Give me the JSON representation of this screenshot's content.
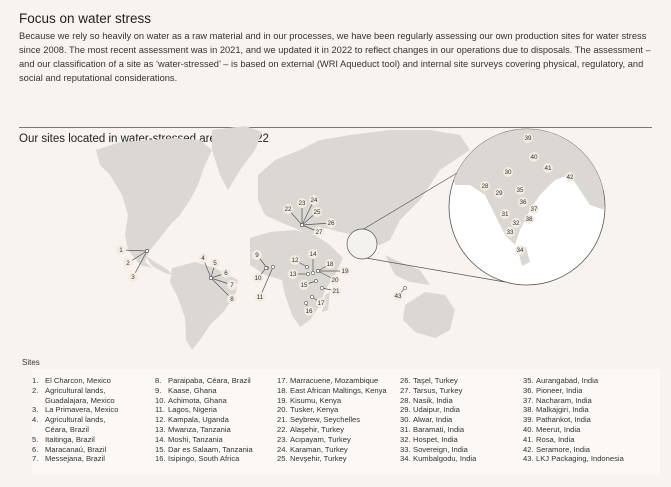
{
  "header": {
    "title": "Focus on water stress",
    "intro": "Because we rely so heavily on water as a raw material and in our processes, we have been regularly assessing our own production sites for water stress since 2008. The most recent assessment was in 2021, and we updated it in 2022 to reflect changes in our operations due to disposals. The assessment – and our classification of a site as ‘water-stressed’ – is based on external (WRI Aqueduct tool) and internal site surveys covering physical, regulatory, and social and reputational considerations.",
    "map_title": "Our sites located in water-stressed areas in 2022"
  },
  "colors": {
    "background": "#f8f3ee",
    "land": "#dbd8d3",
    "marker_bg": "#f3ece3",
    "line": "#555555"
  },
  "sites_heading": "Sites",
  "columns": [
    [
      {
        "n": "1.",
        "t": "El Charcon, Mexico"
      },
      {
        "n": "2.",
        "t": "Agricultural lands,"
      },
      {
        "n": "",
        "t": "Guadalajara, Mexico"
      },
      {
        "n": "3.",
        "t": "La Primavera, Mexico"
      },
      {
        "n": "4.",
        "t": "Agricultural lands,"
      },
      {
        "n": "",
        "t": "Céara, Brazil"
      },
      {
        "n": "5.",
        "t": "Itaitinga, Brazil"
      },
      {
        "n": "6.",
        "t": "Maracanaú, Brazil"
      },
      {
        "n": "7.",
        "t": "Messejana, Brazil"
      }
    ],
    [
      {
        "n": "8.",
        "t": "Paraipaba, Céara, Brazil"
      },
      {
        "n": "9.",
        "t": "Kaase, Ghana"
      },
      {
        "n": "10.",
        "t": "Achimota, Ghana"
      },
      {
        "n": "11.",
        "t": "Lagos, Nigeria"
      },
      {
        "n": "12.",
        "t": "Kampala, Uganda"
      },
      {
        "n": "13.",
        "t": "Mwanza, Tanzania"
      },
      {
        "n": "14.",
        "t": "Moshi, Tanzania"
      },
      {
        "n": "15.",
        "t": "Dar es Salaam, Tanzania"
      },
      {
        "n": "16.",
        "t": "Isipingo, South Africa"
      }
    ],
    [
      {
        "n": "17.",
        "t": "Marracuene, Mozambique"
      },
      {
        "n": "18.",
        "t": "East African Maltings, Kenya"
      },
      {
        "n": "19.",
        "t": "Kisumu, Kenya"
      },
      {
        "n": "20.",
        "t": "Tusker, Kenya"
      },
      {
        "n": "21.",
        "t": "Seybrew, Seychelles"
      },
      {
        "n": "22.",
        "t": "Alaşehir, Turkey"
      },
      {
        "n": "23.",
        "t": "Acıpayam, Turkey"
      },
      {
        "n": "24.",
        "t": "Karaman, Turkey"
      },
      {
        "n": "25.",
        "t": "Nevşehir, Turkey"
      }
    ],
    [
      {
        "n": "26.",
        "t": "Taşel, Turkey"
      },
      {
        "n": "27.",
        "t": "Tarsus, Turkey"
      },
      {
        "n": "28.",
        "t": "Nasik, India"
      },
      {
        "n": "29.",
        "t": "Udaipur, India"
      },
      {
        "n": "30.",
        "t": "Alwar, India"
      },
      {
        "n": "31.",
        "t": "Baramati, India"
      },
      {
        "n": "32.",
        "t": "Hospet, India"
      },
      {
        "n": "33.",
        "t": "Sovereign, India"
      },
      {
        "n": "34.",
        "t": "Kumbalgodu, India"
      }
    ],
    [
      {
        "n": "35.",
        "t": "Aurangabad, India"
      },
      {
        "n": "36.",
        "t": "Pioneer, India"
      },
      {
        "n": "37.",
        "t": "Nacharam, India"
      },
      {
        "n": "38.",
        "t": "Malkajgiri, India"
      },
      {
        "n": "39.",
        "t": "Pathankot, India"
      },
      {
        "n": "40.",
        "t": "Meerut, India"
      },
      {
        "n": "41.",
        "t": "Rosa, India"
      },
      {
        "n": "42.",
        "t": "Seramore, India"
      },
      {
        "n": "43.",
        "t": "LKJ Packaging, Indonesia"
      }
    ]
  ],
  "map_labels": [
    "1",
    "2",
    "3",
    "4",
    "5",
    "6",
    "7",
    "8",
    "9",
    "10",
    "11",
    "12",
    "13",
    "14",
    "15",
    "16",
    "17",
    "18",
    "19",
    "20",
    "21",
    "22",
    "23",
    "24",
    "25",
    "26",
    "27",
    "28",
    "29",
    "30",
    "31",
    "32",
    "33",
    "34",
    "35",
    "36",
    "37",
    "38",
    "39",
    "40",
    "41",
    "42",
    "43"
  ]
}
